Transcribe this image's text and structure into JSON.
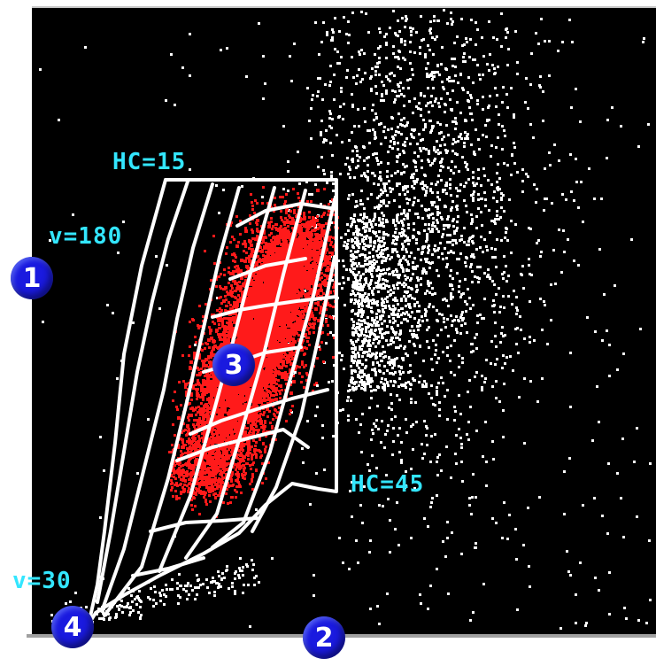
{
  "labels": {
    "hc_top": "HC=15",
    "hc_bottom": "HC=45",
    "v_high": "v=180",
    "v_low": "v=30"
  },
  "badges": {
    "b1": "1",
    "b2": "2",
    "b3": "3",
    "b4": "4"
  },
  "colors": {
    "background": "#000000",
    "label": "#33e6ff",
    "grid": "#ffffff",
    "points_highlight": "#ff1a1a",
    "points_scatter": "#ffffff",
    "badge": "#1a1adf",
    "axis": "#b4b4b4"
  }
}
